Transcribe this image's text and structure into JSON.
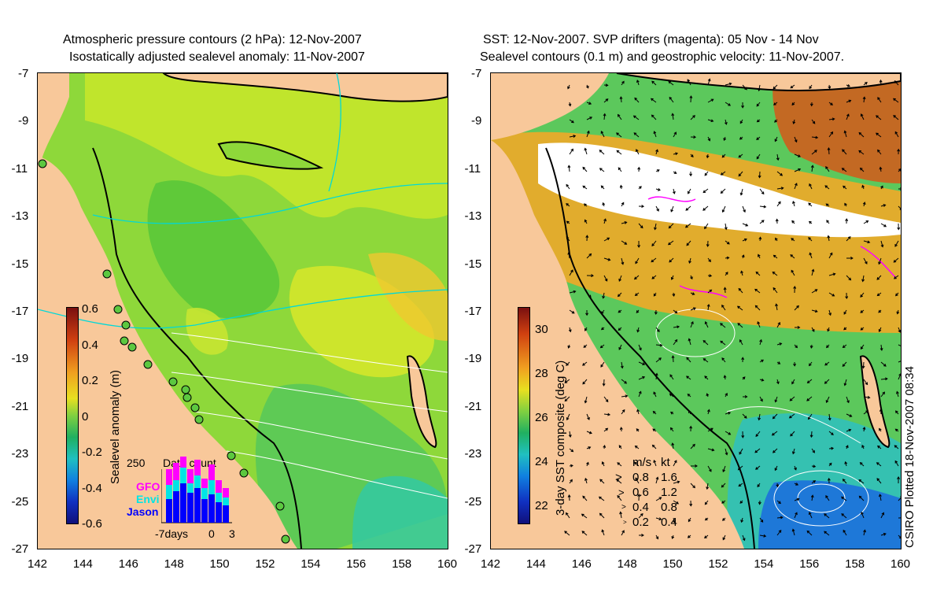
{
  "left_panel": {
    "title_line1": "Atmospheric pressure contours (2 hPa): 12-Nov-2007",
    "title_line2": "Isostatically adjusted sealevel anomaly: 11-Nov-2007",
    "colorbar_label": "Sealevel anomaly (m)",
    "colorbar_ticks": [
      "0.6",
      "0.4",
      "0.2",
      "0",
      "-0.2",
      "-0.4",
      "-0.6"
    ],
    "inset": {
      "title": "Data count",
      "ymax_label": "250",
      "legend": [
        "GFO",
        "Envi",
        "Jason"
      ],
      "x_labels": [
        "-7days",
        "0",
        "3"
      ],
      "colors": {
        "gfo": "#ff00ff",
        "envi": "#00e5e5",
        "jason": "#0000ff"
      }
    }
  },
  "right_panel": {
    "title_line1": "SST: 12-Nov-2007. SVP drifters (magenta): 05 Nov - 14 Nov",
    "title_line2": "Sealevel contours (0.1 m) and geostrophic velocity: 11-Nov-2007.",
    "colorbar_label": "3-day SST composite (deg C)",
    "colorbar_ticks": [
      "30",
      "28",
      "26",
      "24",
      "22"
    ],
    "speed_legend": {
      "header": [
        "m/s",
        "kt"
      ],
      "rows": [
        {
          "ms": "0.8",
          "kt": "1.6"
        },
        {
          "ms": "0.6",
          "kt": "1.2"
        },
        {
          "ms": "0.4",
          "kt": "0.8"
        },
        {
          "ms": "0.2",
          "kt": "0.4"
        }
      ]
    }
  },
  "y_axis_labels": [
    "-7",
    "-9",
    "-11",
    "-13",
    "-15",
    "-17",
    "-19",
    "-21",
    "-23",
    "-25",
    "-27"
  ],
  "x_axis_labels": [
    "142",
    "144",
    "146",
    "148",
    "150",
    "152",
    "154",
    "156",
    "158",
    "160"
  ],
  "credit": "CSIRO Plotted 18-Nov-2007 08:34",
  "colors": {
    "land": "#f8c89a",
    "sla_green": "#7fd23c",
    "sla_yellow": "#d6ea28",
    "sla_orange": "#f0c020",
    "sst_orange": "#f0a020",
    "sst_green": "#5cc85c",
    "sst_blue": "#1e78d8",
    "drifter": "#ff00ff",
    "pressure": "#00d8d8"
  }
}
